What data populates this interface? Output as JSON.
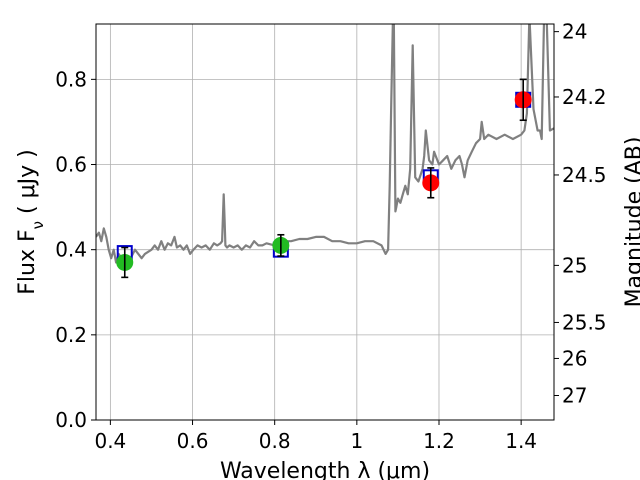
{
  "chart_data": {
    "type": "scatter",
    "title": "",
    "xlabel": "Wavelength  λ (μm)",
    "ylabel": "Flux  F_ν  ( μJy )",
    "ylabel_right": "Magnitude (AB)",
    "xlim": [
      0.365,
      1.48
    ],
    "ylim": [
      0.0,
      0.93
    ],
    "grid": true,
    "colors": {
      "spectrum": "#808080",
      "model_box": "#0000cc",
      "blue_points": "#22bb22",
      "red_points": "#ff0000",
      "errorbar": "#000000"
    },
    "x_ticks": [
      {
        "value": 0.4,
        "label": "0.4"
      },
      {
        "value": 0.6,
        "label": "0.6"
      },
      {
        "value": 0.8,
        "label": "0.8"
      },
      {
        "value": 1.0,
        "label": "1"
      },
      {
        "value": 1.2,
        "label": "1.2"
      },
      {
        "value": 1.4,
        "label": "1.4"
      }
    ],
    "y_ticks": [
      {
        "value": 0.0,
        "label": "0.0"
      },
      {
        "value": 0.2,
        "label": "0.2"
      },
      {
        "value": 0.4,
        "label": "0.4"
      },
      {
        "value": 0.6,
        "label": "0.6"
      },
      {
        "value": 0.8,
        "label": "0.8"
      }
    ],
    "right_ticks": [
      {
        "value": 24,
        "label": "24"
      },
      {
        "value": 24.2,
        "label": "24.2"
      },
      {
        "value": 24.5,
        "label": "24.5"
      },
      {
        "value": 25,
        "label": "25"
      },
      {
        "value": 25.5,
        "label": "25.5"
      },
      {
        "value": 26,
        "label": "26"
      },
      {
        "value": 27,
        "label": "27"
      }
    ],
    "spectrum": {
      "x": [
        0.365,
        0.372,
        0.378,
        0.384,
        0.39,
        0.396,
        0.402,
        0.408,
        0.414,
        0.42,
        0.428,
        0.436,
        0.444,
        0.452,
        0.46,
        0.468,
        0.476,
        0.484,
        0.492,
        0.5,
        0.508,
        0.516,
        0.524,
        0.532,
        0.54,
        0.548,
        0.556,
        0.562,
        0.57,
        0.578,
        0.586,
        0.594,
        0.602,
        0.612,
        0.622,
        0.632,
        0.642,
        0.652,
        0.66,
        0.668,
        0.672,
        0.676,
        0.678,
        0.68,
        0.684,
        0.69,
        0.7,
        0.71,
        0.72,
        0.73,
        0.74,
        0.75,
        0.76,
        0.77,
        0.78,
        0.8,
        0.82,
        0.84,
        0.86,
        0.88,
        0.9,
        0.92,
        0.94,
        0.96,
        0.98,
        1.0,
        1.02,
        1.04,
        1.06,
        1.07,
        1.076,
        1.08,
        1.084,
        1.088,
        1.09,
        1.094,
        1.096,
        1.1,
        1.106,
        1.112,
        1.118,
        1.124,
        1.13,
        1.136,
        1.142,
        1.15,
        1.16,
        1.164,
        1.168,
        1.176,
        1.184,
        1.188,
        1.192,
        1.2,
        1.21,
        1.22,
        1.23,
        1.24,
        1.25,
        1.256,
        1.262,
        1.27,
        1.28,
        1.29,
        1.3,
        1.304,
        1.31,
        1.32,
        1.34,
        1.36,
        1.38,
        1.4,
        1.408,
        1.414,
        1.42,
        1.43,
        1.44,
        1.446,
        1.45,
        1.456,
        1.462,
        1.47,
        1.48
      ],
      "y": [
        0.43,
        0.44,
        0.42,
        0.45,
        0.43,
        0.4,
        0.38,
        0.4,
        0.37,
        0.39,
        0.38,
        0.38,
        0.37,
        0.385,
        0.4,
        0.39,
        0.38,
        0.39,
        0.395,
        0.4,
        0.41,
        0.4,
        0.42,
        0.4,
        0.415,
        0.41,
        0.43,
        0.405,
        0.41,
        0.4,
        0.41,
        0.39,
        0.4,
        0.41,
        0.405,
        0.41,
        0.4,
        0.415,
        0.41,
        0.415,
        0.42,
        0.53,
        0.47,
        0.41,
        0.405,
        0.41,
        0.405,
        0.41,
        0.4,
        0.41,
        0.405,
        0.42,
        0.41,
        0.41,
        0.415,
        0.41,
        0.42,
        0.42,
        0.425,
        0.425,
        0.43,
        0.43,
        0.42,
        0.42,
        0.415,
        0.415,
        0.42,
        0.42,
        0.41,
        0.39,
        0.4,
        0.55,
        0.75,
        0.95,
        0.95,
        0.49,
        0.5,
        0.52,
        0.51,
        0.53,
        0.55,
        0.53,
        0.59,
        0.88,
        0.57,
        0.56,
        0.59,
        0.62,
        0.68,
        0.61,
        0.6,
        0.63,
        0.62,
        0.6,
        0.61,
        0.62,
        0.59,
        0.61,
        0.62,
        0.6,
        0.57,
        0.61,
        0.63,
        0.65,
        0.66,
        0.7,
        0.66,
        0.67,
        0.66,
        0.67,
        0.66,
        0.67,
        0.68,
        0.72,
        0.95,
        0.73,
        0.68,
        0.68,
        0.66,
        0.95,
        0.95,
        0.68,
        0.685
      ]
    },
    "series": [
      {
        "kind": "model",
        "x": [
          0.435,
          0.815,
          1.18,
          1.405
        ],
        "y": [
          0.392,
          0.4,
          0.57,
          0.752
        ]
      },
      {
        "kind": "observed",
        "x": [
          0.435,
          0.815
        ],
        "y": [
          0.37,
          0.41
        ],
        "yerr_low": [
          0.035,
          0.025
        ],
        "yerr_high": [
          0.035,
          0.025
        ],
        "color": "#22bb22"
      },
      {
        "kind": "observed",
        "x": [
          1.18,
          1.405
        ],
        "y": [
          0.557,
          0.752
        ],
        "yerr_low": [
          0.035,
          0.048
        ],
        "yerr_high": [
          0.035,
          0.048
        ],
        "color": "#ff0000"
      }
    ]
  }
}
